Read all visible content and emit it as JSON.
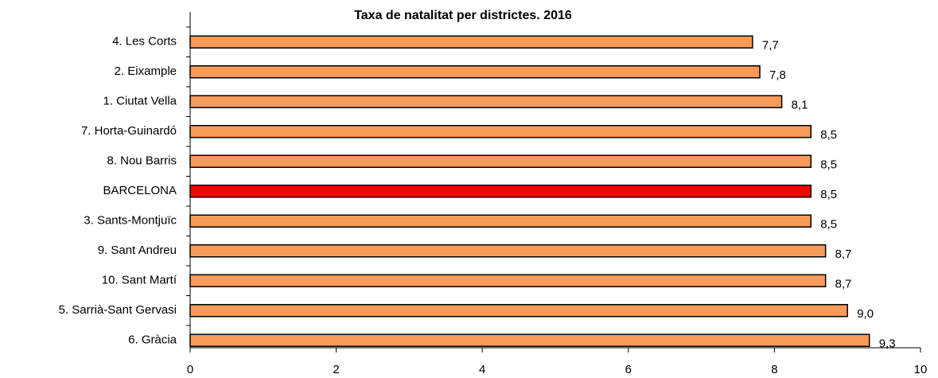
{
  "chart_data": {
    "type": "hbar",
    "title": "Taxa de natalitat per districtes. 2016",
    "categories": [
      "4. Les Corts",
      "2. Eixample",
      "1. Ciutat Vella",
      "7. Horta-Guinardó",
      "8. Nou Barris",
      "BARCELONA",
      "3. Sants-Montjuïc",
      "9. Sant Andreu",
      "10. Sant Martí",
      "5. Sarrià-Sant Gervasi",
      "6. Gràcia"
    ],
    "values": [
      7.7,
      7.8,
      8.1,
      8.5,
      8.5,
      8.5,
      8.5,
      8.7,
      8.7,
      9.0,
      9.3
    ],
    "value_labels": [
      "7,7",
      "7,8",
      "8,1",
      "8,5",
      "8,5",
      "8,5",
      "8,5",
      "8,7",
      "8,7",
      "9,0",
      "9,3"
    ],
    "colors": [
      "#f79a5a",
      "#f79a5a",
      "#f79a5a",
      "#f79a5a",
      "#f79a5a",
      "#ff0000",
      "#f79a5a",
      "#f79a5a",
      "#f79a5a",
      "#f79a5a",
      "#f79a5a"
    ],
    "xlim": [
      0,
      10
    ],
    "xticks": [
      0,
      2,
      4,
      6,
      8,
      10
    ]
  }
}
